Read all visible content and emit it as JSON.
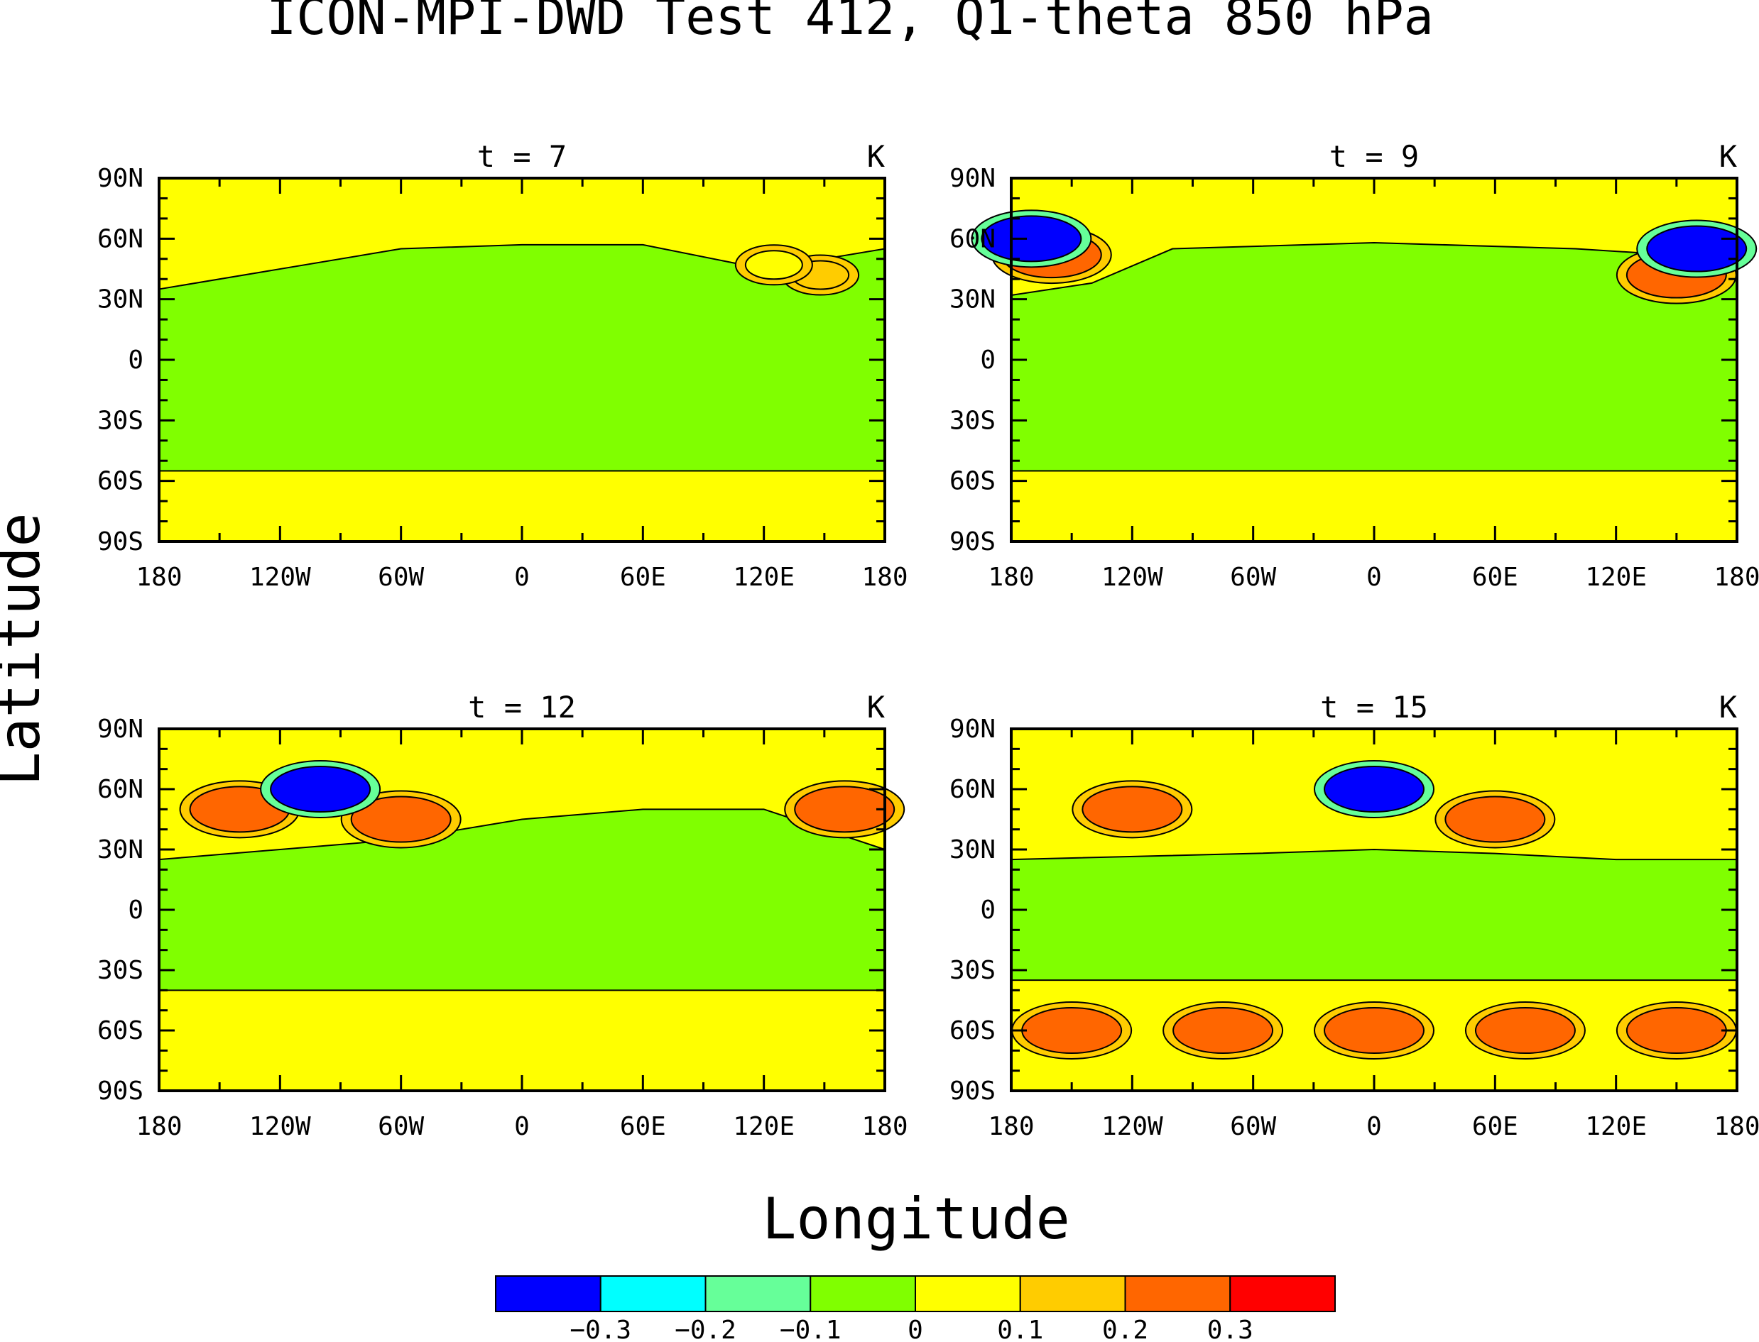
{
  "title": "ICON-MPI-DWD Test 412, Q1-theta 850 hPa",
  "xlabel": "Longitude",
  "ylabel": "Latitude",
  "chart_data": [
    {
      "type": "heatmap",
      "panel_title": "t = 7",
      "units": "K",
      "x_ticks": [
        "180",
        "120W",
        "60W",
        "0",
        "60E",
        "120E",
        "180"
      ],
      "y_ticks": [
        "90N",
        "60N",
        "30N",
        "0",
        "30S",
        "60S",
        "90S"
      ],
      "xlim": [
        -180,
        180
      ],
      "ylim": [
        -90,
        90
      ],
      "green_band": [
        [
          -180,
          35
        ],
        [
          -60,
          55
        ],
        [
          0,
          57
        ],
        [
          60,
          57
        ],
        [
          120,
          45
        ],
        [
          180,
          55
        ]
      ],
      "south_band": -55,
      "anomalies": [
        {
          "lon": 148,
          "lat": 42,
          "value": 0.2
        },
        {
          "lon": 125,
          "lat": 47,
          "value": 0.1
        }
      ]
    },
    {
      "type": "heatmap",
      "panel_title": "t = 9",
      "units": "K",
      "x_ticks": [
        "180",
        "120W",
        "60W",
        "0",
        "60E",
        "120E",
        "180"
      ],
      "y_ticks": [
        "90N",
        "60N",
        "30N",
        "0",
        "30S",
        "60S",
        "90S"
      ],
      "xlim": [
        -180,
        180
      ],
      "ylim": [
        -90,
        90
      ],
      "green_band": [
        [
          -180,
          32
        ],
        [
          -140,
          38
        ],
        [
          -100,
          55
        ],
        [
          0,
          58
        ],
        [
          100,
          55
        ],
        [
          180,
          50
        ]
      ],
      "south_band": -55,
      "anomalies": [
        {
          "lon": -160,
          "lat": 52,
          "value": 0.3
        },
        {
          "lon": -170,
          "lat": 60,
          "value": -0.3
        },
        {
          "lon": 150,
          "lat": 42,
          "value": 0.3
        },
        {
          "lon": 160,
          "lat": 55,
          "value": -0.3
        }
      ]
    },
    {
      "type": "heatmap",
      "panel_title": "t = 12",
      "units": "K",
      "x_ticks": [
        "180",
        "120W",
        "60W",
        "0",
        "60E",
        "120E",
        "180"
      ],
      "y_ticks": [
        "90N",
        "60N",
        "30N",
        "0",
        "30S",
        "60S",
        "90S"
      ],
      "xlim": [
        -180,
        180
      ],
      "ylim": [
        -90,
        90
      ],
      "green_band": [
        [
          -180,
          25
        ],
        [
          -60,
          35
        ],
        [
          0,
          45
        ],
        [
          60,
          50
        ],
        [
          120,
          50
        ],
        [
          180,
          30
        ]
      ],
      "south_band": -40,
      "anomalies": [
        {
          "lon": -140,
          "lat": 50,
          "value": 0.3
        },
        {
          "lon": -60,
          "lat": 45,
          "value": 0.3
        },
        {
          "lon": -100,
          "lat": 60,
          "value": -0.3
        },
        {
          "lon": 160,
          "lat": 50,
          "value": 0.3
        }
      ]
    },
    {
      "type": "heatmap",
      "panel_title": "t = 15",
      "units": "K",
      "x_ticks": [
        "180",
        "120W",
        "60W",
        "0",
        "60E",
        "120E",
        "180"
      ],
      "y_ticks": [
        "90N",
        "60N",
        "30N",
        "0",
        "30S",
        "60S",
        "90S"
      ],
      "xlim": [
        -180,
        180
      ],
      "ylim": [
        -90,
        90
      ],
      "green_band": [
        [
          -180,
          25
        ],
        [
          -60,
          28
        ],
        [
          0,
          30
        ],
        [
          60,
          28
        ],
        [
          120,
          25
        ],
        [
          180,
          25
        ]
      ],
      "south_band": -35,
      "anomalies": [
        {
          "lon": -120,
          "lat": 50,
          "value": 0.3
        },
        {
          "lon": 0,
          "lat": 60,
          "value": -0.3
        },
        {
          "lon": 60,
          "lat": 45,
          "value": 0.3
        },
        {
          "lon": -150,
          "lat": -60,
          "value": 0.3
        },
        {
          "lon": -75,
          "lat": -60,
          "value": 0.3
        },
        {
          "lon": 0,
          "lat": -60,
          "value": 0.3
        },
        {
          "lon": 75,
          "lat": -60,
          "value": 0.3
        },
        {
          "lon": 150,
          "lat": -60,
          "value": 0.3
        }
      ]
    }
  ],
  "colorbar": {
    "colors": [
      "#0000ff",
      "#00ffff",
      "#66ff99",
      "#80ff00",
      "#ffff00",
      "#ffcc00",
      "#ff6600",
      "#ff0000"
    ],
    "labels": [
      "−0.3",
      "−0.2",
      "−0.1",
      "0",
      "0.1",
      "0.2",
      "0.3"
    ]
  },
  "colors": {
    "green": "#80ff00",
    "yellow": "#ffff00",
    "blue": "#0000ff",
    "red": "#ff0000"
  }
}
